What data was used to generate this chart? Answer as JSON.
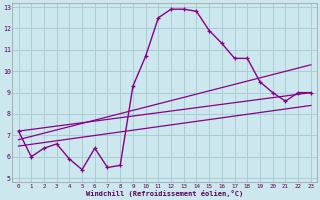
{
  "xlabel": "Windchill (Refroidissement éolien,°C)",
  "background_color": "#cce8ee",
  "grid_color": "#aacdd5",
  "line_color": "#880088",
  "x_hours": [
    0,
    1,
    2,
    3,
    4,
    5,
    6,
    7,
    8,
    9,
    10,
    11,
    12,
    13,
    14,
    15,
    16,
    17,
    18,
    19,
    20,
    21,
    22,
    23
  ],
  "y_main": [
    7.2,
    6.0,
    6.4,
    6.6,
    5.9,
    5.4,
    6.4,
    5.5,
    5.6,
    9.3,
    10.7,
    12.5,
    12.9,
    12.9,
    12.8,
    11.9,
    11.3,
    10.6,
    10.6,
    9.5,
    9.0,
    8.6,
    9.0,
    9.0
  ],
  "ylim": [
    4.8,
    13.2
  ],
  "xlim": [
    -0.5,
    23.5
  ],
  "yticks": [
    5,
    6,
    7,
    8,
    9,
    10,
    11,
    12,
    13
  ],
  "xticks": [
    0,
    1,
    2,
    3,
    4,
    5,
    6,
    7,
    8,
    9,
    10,
    11,
    12,
    13,
    14,
    15,
    16,
    17,
    18,
    19,
    20,
    21,
    22,
    23
  ],
  "trend1_start": 6.8,
  "trend1_end": 10.3,
  "trend2_start": 7.2,
  "trend2_end": 9.0,
  "trend3_start": 6.5,
  "trend3_end": 8.4
}
